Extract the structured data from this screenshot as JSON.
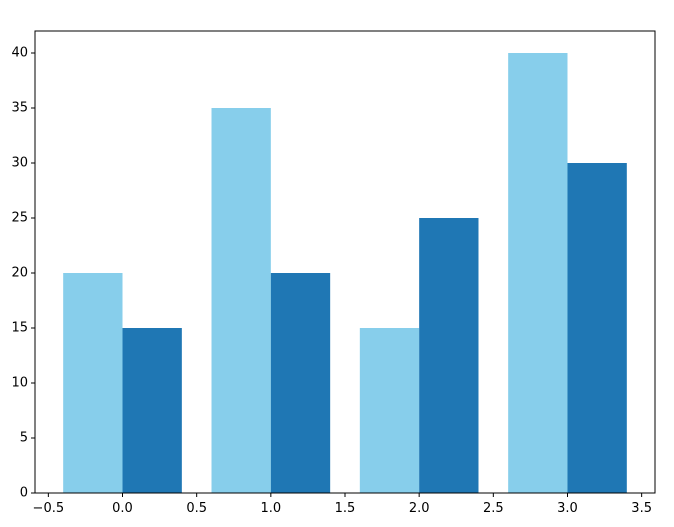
{
  "chart_data": {
    "type": "bar",
    "x": [
      0,
      1,
      2,
      3
    ],
    "series": [
      {
        "color": "#87ceeb",
        "values": [
          20,
          35,
          15,
          40
        ]
      },
      {
        "color": "#1f77b4",
        "values": [
          15,
          20,
          25,
          30
        ]
      }
    ],
    "xlim": [
      -0.59,
      3.59
    ],
    "xticks": [
      {
        "value": -0.5,
        "label": "−0.5"
      },
      {
        "value": 0,
        "label": "0.0"
      },
      0.5,
      {
        "value": 1,
        "label": "1.0"
      },
      1.5,
      {
        "value": 2,
        "label": "2.0"
      },
      2.5,
      {
        "value": 3,
        "label": "3.0"
      },
      3.5
    ],
    "ylim": [
      0,
      42
    ],
    "yticks": [
      0,
      5,
      10,
      15,
      20,
      25,
      30,
      35,
      40
    ]
  }
}
